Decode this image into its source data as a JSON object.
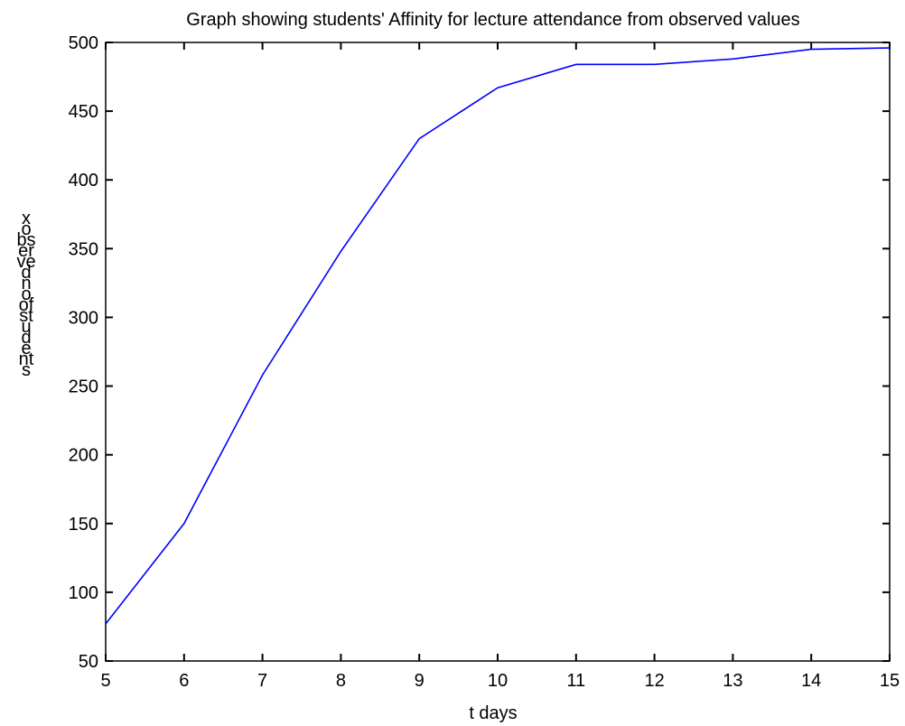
{
  "chart_data": {
    "type": "line",
    "title": "Graph showing students' Affinity for lecture attendance from observed values",
    "xlabel": "t days",
    "ylabel": "x observed no of students",
    "xlim": [
      5,
      15
    ],
    "ylim": [
      50,
      500
    ],
    "xticks": [
      5,
      6,
      7,
      8,
      9,
      10,
      11,
      12,
      13,
      14,
      15
    ],
    "yticks": [
      50,
      100,
      150,
      200,
      250,
      300,
      350,
      400,
      450,
      500
    ],
    "grid": false,
    "series": [
      {
        "color": "#0000ff",
        "x": [
          5,
          6,
          7,
          8,
          9,
          10,
          11,
          12,
          13,
          14,
          15
        ],
        "y": [
          77,
          150,
          258,
          348,
          430,
          467,
          484,
          484,
          488,
          495,
          496
        ]
      }
    ]
  }
}
